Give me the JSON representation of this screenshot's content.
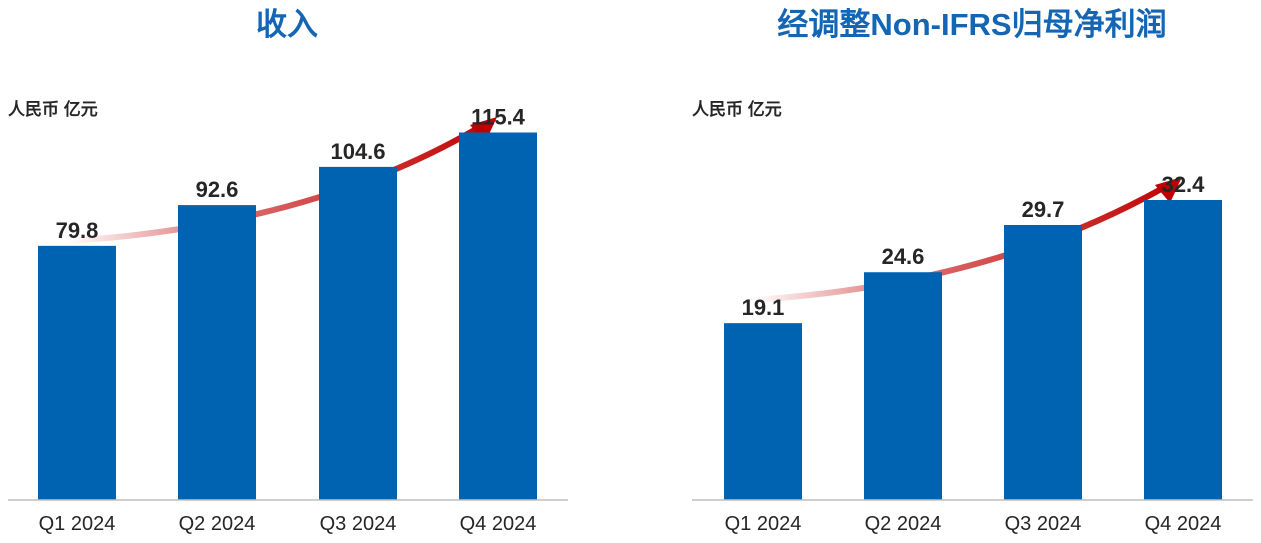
{
  "colors": {
    "title": "#1466b4",
    "bar": "#0063b2",
    "arrow": "#c00000",
    "text": "#262626",
    "axis": "#bfbfbf"
  },
  "chart_data": [
    {
      "type": "bar",
      "title": "收入",
      "unit": "人民币 亿元",
      "categories": [
        "Q1 2024",
        "Q2 2024",
        "Q3 2024",
        "Q4 2024"
      ],
      "values": [
        79.8,
        92.6,
        104.6,
        115.4
      ],
      "data_labels": [
        "79.8",
        "92.6",
        "104.6",
        "115.4"
      ],
      "ylim": [
        0,
        157
      ],
      "grid": false,
      "annotation": "upward-trend-arrow"
    },
    {
      "type": "bar",
      "title": "经调整Non-IFRS归母净利润",
      "unit": "人民币 亿元",
      "categories": [
        "Q1 2024",
        "Q2 2024",
        "Q3 2024",
        "Q4 2024"
      ],
      "values": [
        19.1,
        24.6,
        29.7,
        32.4
      ],
      "data_labels": [
        "19.1",
        "24.6",
        "29.7",
        "32.4"
      ],
      "ylim": [
        0,
        54
      ],
      "grid": false,
      "annotation": "upward-trend-arrow"
    }
  ]
}
